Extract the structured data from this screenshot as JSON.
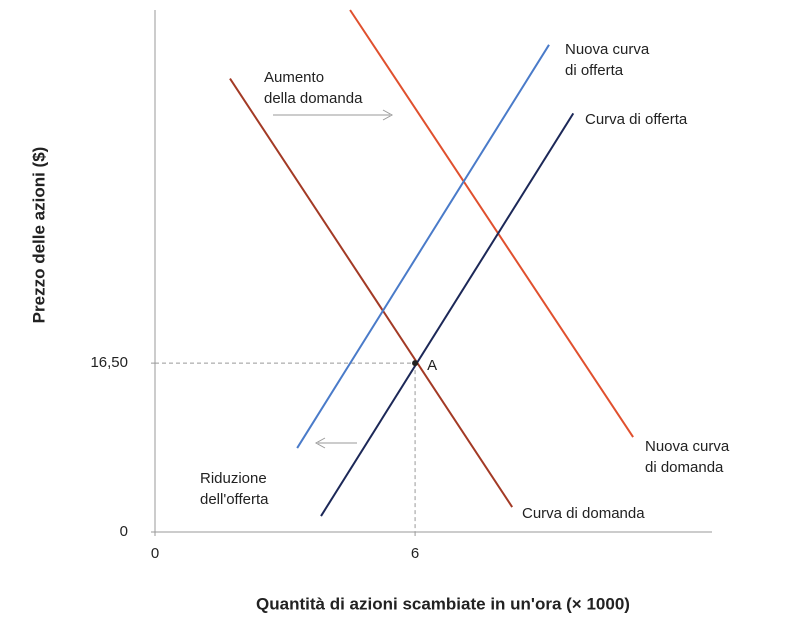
{
  "chart_data": {
    "type": "line",
    "ylabel": "Prezzo delle azioni ($)",
    "xlabel": "Quantità di azioni scambiate in un'ora (× 1000)",
    "xlim": [
      0,
      12.85
    ],
    "ylim": [
      0,
      51
    ],
    "xticks": [
      0,
      6
    ],
    "yticks": [
      0,
      {
        "value": 16.5,
        "label": "16,50"
      }
    ],
    "series": [
      {
        "name": [
          "Curva di domanda"
        ],
        "color": "#a33a25",
        "x": [
          1.73,
          8.24
        ],
        "values": [
          44.3,
          2.44
        ]
      },
      {
        "name": [
          "Nuova curva",
          "di domanda"
        ],
        "color": "#e0502e",
        "x": [
          4.5,
          11.03
        ],
        "values": [
          51,
          9.28
        ]
      },
      {
        "name": [
          "Curva di offerta"
        ],
        "color": "#1c2858",
        "x": [
          3.83,
          9.65
        ],
        "values": [
          1.56,
          40.9
        ]
      },
      {
        "name": [
          "Nuova curva",
          "di offerta"
        ],
        "color": "#4a7bc9",
        "x": [
          3.28,
          9.09
        ],
        "values": [
          8.2,
          47.6
        ]
      }
    ],
    "points": [
      {
        "label": "A",
        "x": 6,
        "y": 16.5
      }
    ],
    "annotations": [
      {
        "text": [
          "Aumento",
          "della domanda"
        ]
      },
      {
        "text": [
          "Riduzione",
          "dell'offerta"
        ]
      }
    ]
  }
}
